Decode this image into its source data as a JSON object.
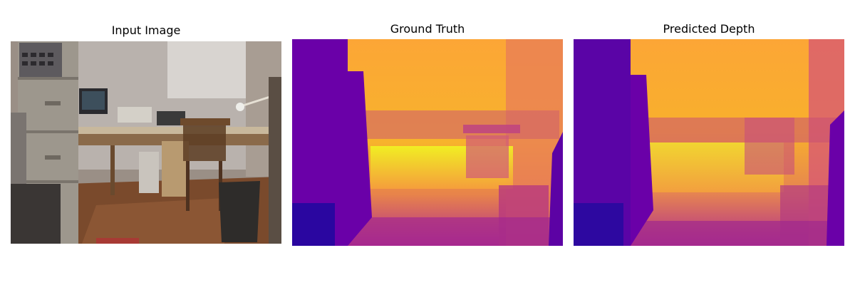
{
  "panels": [
    {
      "title": "Input Image"
    },
    {
      "title": "Ground Truth"
    },
    {
      "title": "Predicted Depth"
    }
  ],
  "colors": {
    "background": "#ffffff",
    "plasma_dark": "#0d0887",
    "plasma_purple": "#6a00a8",
    "plasma_magenta": "#b12a90",
    "plasma_orange": "#e16462",
    "plasma_yellow": "#fca636",
    "plasma_bright": "#f0f921"
  }
}
